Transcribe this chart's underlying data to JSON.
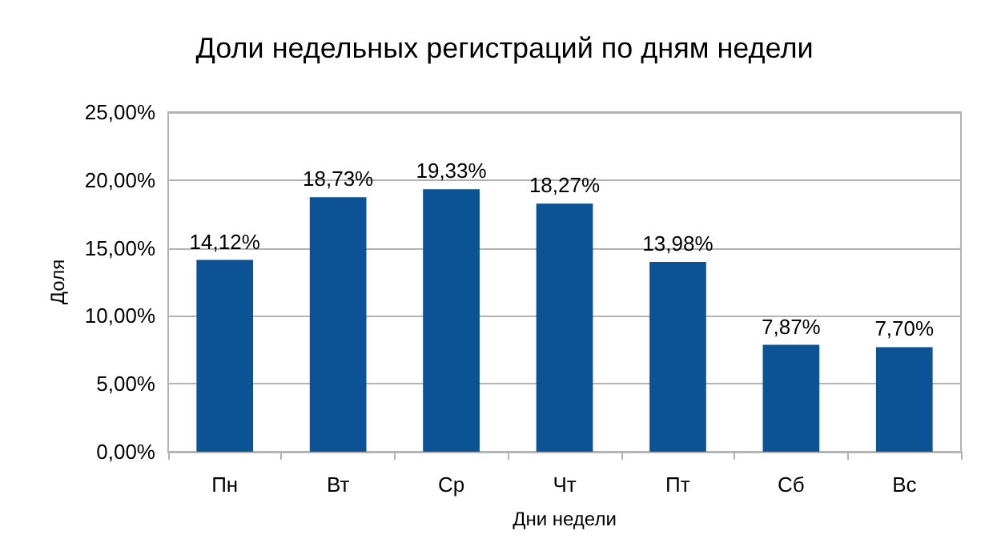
{
  "chart_data": {
    "type": "bar",
    "title": "Доли недельных регистраций по дням недели",
    "xlabel": "Дни недели",
    "ylabel": "Доля",
    "categories": [
      "Пн",
      "Вт",
      "Ср",
      "Чт",
      "Пт",
      "Сб",
      "Вс"
    ],
    "values": [
      14.12,
      18.73,
      19.33,
      18.27,
      13.98,
      7.87,
      7.7
    ],
    "value_labels": [
      "14,12%",
      "18,73%",
      "19,33%",
      "18,27%",
      "13,98%",
      "7,87%",
      "7,70%"
    ],
    "color": "#0b5394",
    "ylim": [
      0,
      25
    ],
    "yticks": [
      {
        "value": 0,
        "label": "0,00%"
      },
      {
        "value": 5,
        "label": "5,00%"
      },
      {
        "value": 10,
        "label": "10,00%"
      },
      {
        "value": 15,
        "label": "15,00%"
      },
      {
        "value": 20,
        "label": "20,00%"
      },
      {
        "value": 25,
        "label": "25,00%"
      }
    ],
    "grid": "y"
  }
}
